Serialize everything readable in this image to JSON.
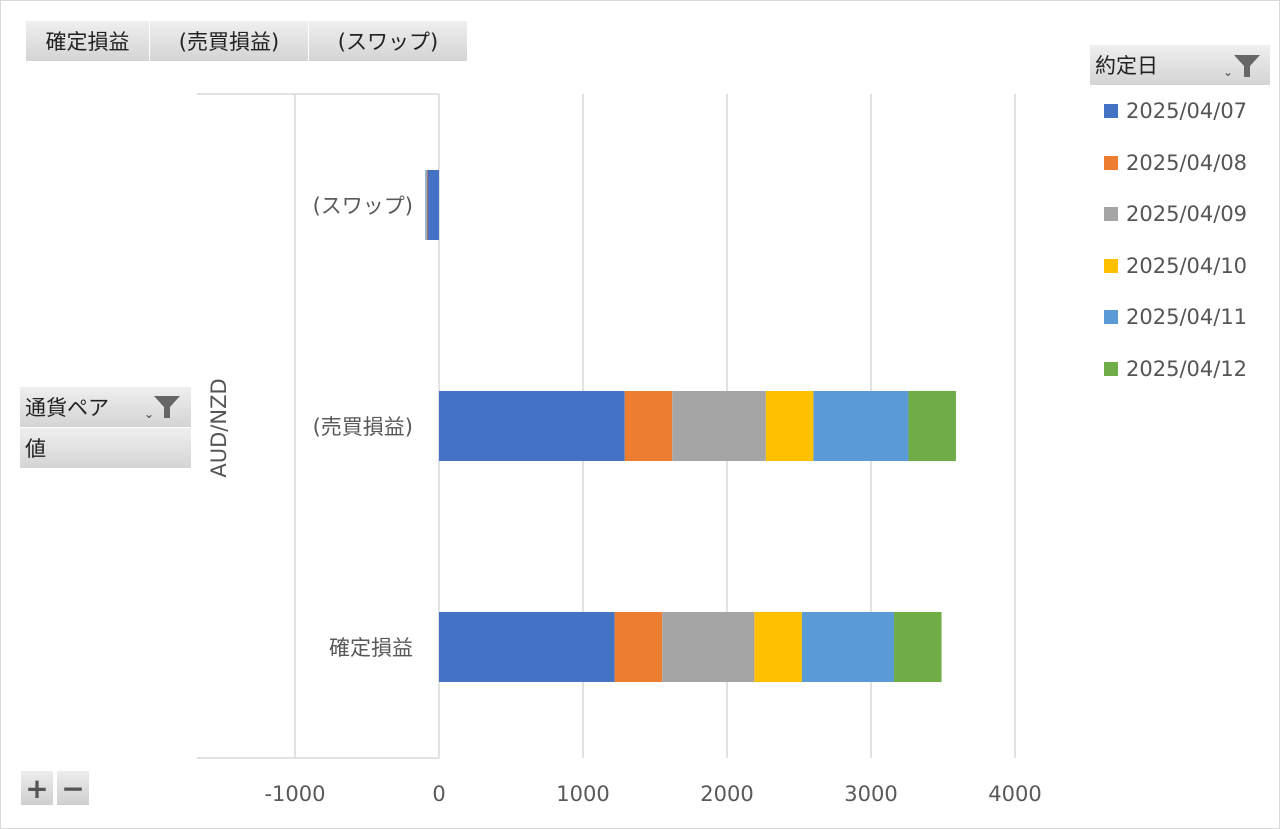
{
  "field_buttons": {
    "values": [
      "確定損益",
      "(売買損益)",
      "(スワップ)"
    ],
    "legend_field": "約定日",
    "row_field": "通貨ペア",
    "value_field": "値"
  },
  "zoom": {
    "plus": "+",
    "minus": "−"
  },
  "icons": {
    "filter": "funnel-filter-icon",
    "dropdown": "dropdown-arrow-icon"
  },
  "chart_data": {
    "type": "bar",
    "orientation": "horizontal",
    "stacked": true,
    "group_label": "AUD/NZD",
    "categories": [
      "確定損益",
      "(売買損益)",
      "(スワップ)"
    ],
    "xlim": [
      -1000,
      4000
    ],
    "xticks": [
      "-1000",
      "0",
      "1000",
      "2000",
      "3000",
      "4000"
    ],
    "grid": true,
    "legend_placement": "right",
    "series": [
      {
        "name": "2025/04/07",
        "color": "#4472C4",
        "values": [
          1220,
          1290,
          -80
        ]
      },
      {
        "name": "2025/04/08",
        "color": "#ED7D31",
        "values": [
          330,
          330,
          -5
        ]
      },
      {
        "name": "2025/04/09",
        "color": "#A5A5A5",
        "values": [
          640,
          650,
          -5
        ]
      },
      {
        "name": "2025/04/10",
        "color": "#FFC000",
        "values": [
          330,
          330,
          0
        ]
      },
      {
        "name": "2025/04/11",
        "color": "#5B9BD5",
        "values": [
          640,
          660,
          -5
        ]
      },
      {
        "name": "2025/04/12",
        "color": "#70AD47",
        "values": [
          330,
          330,
          0
        ]
      }
    ]
  }
}
